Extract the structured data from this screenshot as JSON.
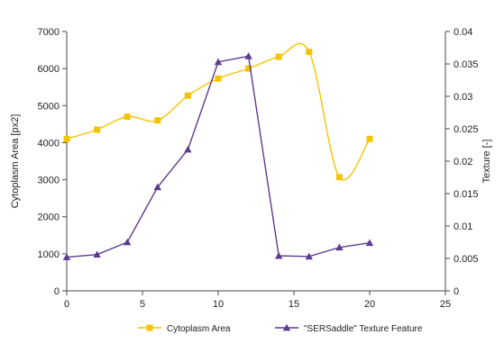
{
  "chart_data": {
    "type": "line",
    "title": "",
    "xlabel": "",
    "ylabel": "Cytoplasm Area  [px2]",
    "y2label": "Texture [-]",
    "xlim": [
      0,
      25
    ],
    "ylim": [
      0,
      7000
    ],
    "y2lim": [
      0,
      0.04
    ],
    "x_ticks": [
      "0",
      "5",
      "10",
      "15",
      "20",
      "25"
    ],
    "y_ticks": [
      "0",
      "1000",
      "2000",
      "3000",
      "4000",
      "5000",
      "6000",
      "7000"
    ],
    "y2_ticks": [
      "0",
      "0.005",
      "0.01",
      "0.015",
      "0.02",
      "0.025",
      "0.03",
      "0.035",
      "0.04"
    ],
    "grid": false,
    "legend_position": "bottom",
    "series": [
      {
        "name": "Cytoplasm Area",
        "axis": "left",
        "color": "#F5C400",
        "marker": "square",
        "smooth": true,
        "x": [
          0,
          2,
          4,
          6,
          8,
          10,
          12,
          14,
          16,
          18,
          20
        ],
        "y": [
          4100,
          4350,
          4700,
          4600,
          5270,
          5730,
          6000,
          6320,
          6450,
          3070,
          4100
        ]
      },
      {
        "name": "\"SERSaddle\" Texture Feature",
        "axis": "right",
        "color": "#5B3C8F",
        "marker": "triangle",
        "smooth": false,
        "x": [
          0,
          2,
          4,
          6,
          8,
          10,
          12,
          14,
          16,
          18,
          20
        ],
        "y": [
          0.0052,
          0.0056,
          0.0075,
          0.016,
          0.0218,
          0.0353,
          0.0362,
          0.0054,
          0.0053,
          0.0067,
          0.0074
        ]
      }
    ]
  }
}
